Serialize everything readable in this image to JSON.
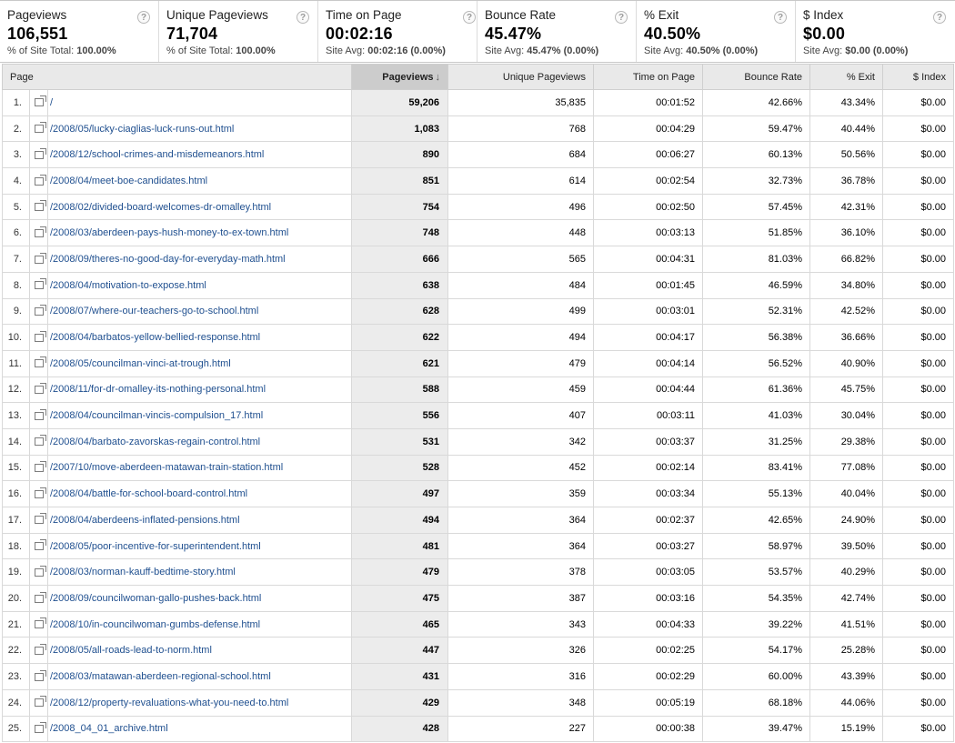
{
  "summary": [
    {
      "title": "Pageviews",
      "value": "106,551",
      "sub_label": "% of Site Total: ",
      "sub_value": "100.00%"
    },
    {
      "title": "Unique Pageviews",
      "value": "71,704",
      "sub_label": "% of Site Total: ",
      "sub_value": "100.00%"
    },
    {
      "title": "Time on Page",
      "value": "00:02:16",
      "sub_label": "Site Avg: ",
      "sub_value": "00:02:16 (0.00%)"
    },
    {
      "title": "Bounce Rate",
      "value": "45.47%",
      "sub_label": "Site Avg: ",
      "sub_value": "45.47% (0.00%)"
    },
    {
      "title": "% Exit",
      "value": "40.50%",
      "sub_label": "Site Avg: ",
      "sub_value": "40.50% (0.00%)"
    },
    {
      "title": "$ Index",
      "value": "$0.00",
      "sub_label": "Site Avg: ",
      "sub_value": "$0.00 (0.00%)"
    }
  ],
  "help_glyph": "?",
  "table": {
    "headers": {
      "page": "Page",
      "pageviews": "Pageviews",
      "sort_arrow": "↓",
      "unique": "Unique Pageviews",
      "time": "Time on Page",
      "bounce": "Bounce Rate",
      "exit": "% Exit",
      "index": "$ Index"
    },
    "rows": [
      {
        "n": "1.",
        "page": "/",
        "pv": "59,206",
        "upv": "35,835",
        "time": "00:01:52",
        "bounce": "42.66%",
        "exit": "43.34%",
        "index": "$0.00"
      },
      {
        "n": "2.",
        "page": "/2008/05/lucky-ciaglias-luck-runs-out.html",
        "pv": "1,083",
        "upv": "768",
        "time": "00:04:29",
        "bounce": "59.47%",
        "exit": "40.44%",
        "index": "$0.00"
      },
      {
        "n": "3.",
        "page": "/2008/12/school-crimes-and-misdemeanors.html",
        "pv": "890",
        "upv": "684",
        "time": "00:06:27",
        "bounce": "60.13%",
        "exit": "50.56%",
        "index": "$0.00"
      },
      {
        "n": "4.",
        "page": "/2008/04/meet-boe-candidates.html",
        "pv": "851",
        "upv": "614",
        "time": "00:02:54",
        "bounce": "32.73%",
        "exit": "36.78%",
        "index": "$0.00"
      },
      {
        "n": "5.",
        "page": "/2008/02/divided-board-welcomes-dr-omalley.html",
        "pv": "754",
        "upv": "496",
        "time": "00:02:50",
        "bounce": "57.45%",
        "exit": "42.31%",
        "index": "$0.00"
      },
      {
        "n": "6.",
        "page": "/2008/03/aberdeen-pays-hush-money-to-ex-town.html",
        "pv": "748",
        "upv": "448",
        "time": "00:03:13",
        "bounce": "51.85%",
        "exit": "36.10%",
        "index": "$0.00"
      },
      {
        "n": "7.",
        "page": "/2008/09/theres-no-good-day-for-everyday-math.html",
        "pv": "666",
        "upv": "565",
        "time": "00:04:31",
        "bounce": "81.03%",
        "exit": "66.82%",
        "index": "$0.00"
      },
      {
        "n": "8.",
        "page": "/2008/04/motivation-to-expose.html",
        "pv": "638",
        "upv": "484",
        "time": "00:01:45",
        "bounce": "46.59%",
        "exit": "34.80%",
        "index": "$0.00"
      },
      {
        "n": "9.",
        "page": "/2008/07/where-our-teachers-go-to-school.html",
        "pv": "628",
        "upv": "499",
        "time": "00:03:01",
        "bounce": "52.31%",
        "exit": "42.52%",
        "index": "$0.00"
      },
      {
        "n": "10.",
        "page": "/2008/04/barbatos-yellow-bellied-response.html",
        "pv": "622",
        "upv": "494",
        "time": "00:04:17",
        "bounce": "56.38%",
        "exit": "36.66%",
        "index": "$0.00"
      },
      {
        "n": "11.",
        "page": "/2008/05/councilman-vinci-at-trough.html",
        "pv": "621",
        "upv": "479",
        "time": "00:04:14",
        "bounce": "56.52%",
        "exit": "40.90%",
        "index": "$0.00"
      },
      {
        "n": "12.",
        "page": "/2008/11/for-dr-omalley-its-nothing-personal.html",
        "pv": "588",
        "upv": "459",
        "time": "00:04:44",
        "bounce": "61.36%",
        "exit": "45.75%",
        "index": "$0.00"
      },
      {
        "n": "13.",
        "page": "/2008/04/councilman-vincis-compulsion_17.html",
        "pv": "556",
        "upv": "407",
        "time": "00:03:11",
        "bounce": "41.03%",
        "exit": "30.04%",
        "index": "$0.00"
      },
      {
        "n": "14.",
        "page": "/2008/04/barbato-zavorskas-regain-control.html",
        "pv": "531",
        "upv": "342",
        "time": "00:03:37",
        "bounce": "31.25%",
        "exit": "29.38%",
        "index": "$0.00"
      },
      {
        "n": "15.",
        "page": "/2007/10/move-aberdeen-matawan-train-station.html",
        "pv": "528",
        "upv": "452",
        "time": "00:02:14",
        "bounce": "83.41%",
        "exit": "77.08%",
        "index": "$0.00"
      },
      {
        "n": "16.",
        "page": "/2008/04/battle-for-school-board-control.html",
        "pv": "497",
        "upv": "359",
        "time": "00:03:34",
        "bounce": "55.13%",
        "exit": "40.04%",
        "index": "$0.00"
      },
      {
        "n": "17.",
        "page": "/2008/04/aberdeens-inflated-pensions.html",
        "pv": "494",
        "upv": "364",
        "time": "00:02:37",
        "bounce": "42.65%",
        "exit": "24.90%",
        "index": "$0.00"
      },
      {
        "n": "18.",
        "page": "/2008/05/poor-incentive-for-superintendent.html",
        "pv": "481",
        "upv": "364",
        "time": "00:03:27",
        "bounce": "58.97%",
        "exit": "39.50%",
        "index": "$0.00"
      },
      {
        "n": "19.",
        "page": "/2008/03/norman-kauff-bedtime-story.html",
        "pv": "479",
        "upv": "378",
        "time": "00:03:05",
        "bounce": "53.57%",
        "exit": "40.29%",
        "index": "$0.00"
      },
      {
        "n": "20.",
        "page": "/2008/09/councilwoman-gallo-pushes-back.html",
        "pv": "475",
        "upv": "387",
        "time": "00:03:16",
        "bounce": "54.35%",
        "exit": "42.74%",
        "index": "$0.00"
      },
      {
        "n": "21.",
        "page": "/2008/10/in-councilwoman-gumbs-defense.html",
        "pv": "465",
        "upv": "343",
        "time": "00:04:33",
        "bounce": "39.22%",
        "exit": "41.51%",
        "index": "$0.00"
      },
      {
        "n": "22.",
        "page": "/2008/05/all-roads-lead-to-norm.html",
        "pv": "447",
        "upv": "326",
        "time": "00:02:25",
        "bounce": "54.17%",
        "exit": "25.28%",
        "index": "$0.00"
      },
      {
        "n": "23.",
        "page": "/2008/03/matawan-aberdeen-regional-school.html",
        "pv": "431",
        "upv": "316",
        "time": "00:02:29",
        "bounce": "60.00%",
        "exit": "43.39%",
        "index": "$0.00"
      },
      {
        "n": "24.",
        "page": "/2008/12/property-revaluations-what-you-need-to.html",
        "pv": "429",
        "upv": "348",
        "time": "00:05:19",
        "bounce": "68.18%",
        "exit": "44.06%",
        "index": "$0.00"
      },
      {
        "n": "25.",
        "page": "/2008_04_01_archive.html",
        "pv": "428",
        "upv": "227",
        "time": "00:00:38",
        "bounce": "39.47%",
        "exit": "15.19%",
        "index": "$0.00"
      }
    ]
  }
}
